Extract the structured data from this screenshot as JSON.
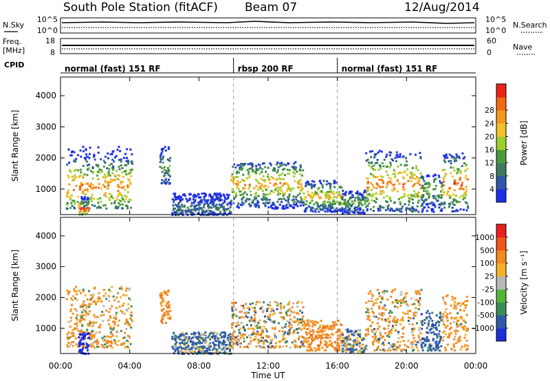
{
  "header": {
    "station": "South Pole Station (fitACF)",
    "beam": "Beam 07",
    "date": "12/Aug/2014"
  },
  "noise_panel": {
    "left_label": "N.Sky",
    "right_label": "N.Search",
    "left_ticks": [
      "10^5",
      "10^0"
    ],
    "right_ticks": [
      "10^5",
      "10^0"
    ]
  },
  "freq_panel": {
    "left_label_line1": "Freq.",
    "left_label_line2": "[MHz]",
    "right_label": "Nave",
    "left_ticks": [
      "18",
      "8"
    ],
    "right_ticks": [
      "60",
      "0"
    ]
  },
  "cpid": {
    "label": "CPID",
    "segments": [
      {
        "name": "normal (fast) 151 RF",
        "start_hour": 0,
        "end_hour": 10
      },
      {
        "name": "rbsp 200 RF",
        "start_hour": 10,
        "end_hour": 16
      },
      {
        "name": "normal (fast) 151 RF",
        "start_hour": 16,
        "end_hour": 24
      }
    ]
  },
  "colors": {
    "power_scale": [
      "#1e2fe6",
      "#2f57a8",
      "#3e7a5e",
      "#4b9a3c",
      "#9ccf2e",
      "#f2c12a",
      "#f29a1e",
      "#f06a14",
      "#e8241a"
    ],
    "velocity_scale": [
      "#e8201c",
      "#f0561a",
      "#f28a1e",
      "#f5b12a",
      "#b8b8b8",
      "#56b33a",
      "#3c8c5a",
      "#2f5aa6",
      "#1d2fd8"
    ]
  },
  "chart_data": [
    {
      "type": "heatmap",
      "title": "",
      "xlabel": "Time UT",
      "ylabel": "Slant Range [km]",
      "xlim": [
        0,
        24
      ],
      "ylim": [
        180,
        4600
      ],
      "x_ticks": [
        "00:00",
        "04:00",
        "08:00",
        "12:00",
        "16:00",
        "20:00",
        "00:00"
      ],
      "y_ticks": [
        "1000",
        "2000",
        "3000",
        "4000"
      ],
      "colorbar": {
        "label": "Power [dB]",
        "min": 0,
        "max": 32,
        "tick_labels": [
          "4",
          "8",
          "12",
          "16",
          "20",
          "24",
          "28"
        ]
      },
      "regions": [
        {
          "t": [
            0.3,
            4.1
          ],
          "r": [
            400,
            2400
          ],
          "center": 1100,
          "level": 24,
          "note": "daytime echo band 00-04 UT"
        },
        {
          "t": [
            1.0,
            1.6
          ],
          "r": [
            200,
            800
          ],
          "center": 400,
          "level": 28
        },
        {
          "t": [
            5.7,
            6.3
          ],
          "r": [
            1200,
            2400
          ],
          "center": 1700,
          "level": 12
        },
        {
          "t": [
            6.4,
            9.8
          ],
          "r": [
            200,
            900
          ],
          "center": 400,
          "level": 8
        },
        {
          "t": [
            9.8,
            14.0
          ],
          "r": [
            400,
            1900
          ],
          "center": 1200,
          "level": 22
        },
        {
          "t": [
            14.0,
            16.2
          ],
          "r": [
            300,
            1300
          ],
          "center": 800,
          "level": 20
        },
        {
          "t": [
            16.2,
            17.6
          ],
          "r": [
            250,
            1000
          ],
          "center": 600,
          "level": 12
        },
        {
          "t": [
            17.6,
            20.8
          ],
          "r": [
            300,
            2300
          ],
          "center": 1200,
          "level": 24
        },
        {
          "t": [
            20.8,
            22.0
          ],
          "r": [
            300,
            1500
          ],
          "center": 1000,
          "level": 14
        },
        {
          "t": [
            22.0,
            23.5
          ],
          "r": [
            300,
            2200
          ],
          "center": 1200,
          "level": 26
        }
      ]
    },
    {
      "type": "heatmap",
      "title": "",
      "xlabel": "Time UT",
      "ylabel": "Slant Range [km]",
      "xlim": [
        0,
        24
      ],
      "ylim": [
        180,
        4600
      ],
      "x_ticks": [
        "00:00",
        "04:00",
        "08:00",
        "12:00",
        "16:00",
        "20:00",
        "00:00"
      ],
      "y_ticks": [
        "1000",
        "2000",
        "3000",
        "4000"
      ],
      "colorbar": {
        "label": "Velocity [m s⁻¹]",
        "tick_labels": [
          "1000",
          "500",
          "100",
          "25",
          "-25",
          "-100",
          "-500",
          "-1000"
        ]
      },
      "regions": [
        {
          "t": [
            0.3,
            4.1
          ],
          "r": [
            400,
            2400
          ],
          "center": 1200,
          "level": -150
        },
        {
          "t": [
            1.0,
            1.6
          ],
          "r": [
            200,
            900
          ],
          "center": 500,
          "level": 800
        },
        {
          "t": [
            5.7,
            6.3
          ],
          "r": [
            1200,
            2300
          ],
          "center": 1700,
          "level": -300
        },
        {
          "t": [
            6.4,
            9.8
          ],
          "r": [
            200,
            900
          ],
          "center": 400,
          "level": 150
        },
        {
          "t": [
            9.8,
            14.0
          ],
          "r": [
            400,
            1900
          ],
          "center": 1200,
          "level": -80
        },
        {
          "t": [
            14.0,
            16.2
          ],
          "r": [
            300,
            1300
          ],
          "center": 800,
          "level": -300
        },
        {
          "t": [
            16.2,
            17.6
          ],
          "r": [
            250,
            1000
          ],
          "center": 600,
          "level": 60
        },
        {
          "t": [
            17.6,
            20.8
          ],
          "r": [
            300,
            2300
          ],
          "center": 1200,
          "level": -120
        },
        {
          "t": [
            20.8,
            22.0
          ],
          "r": [
            300,
            1600
          ],
          "center": 900,
          "level": 300
        },
        {
          "t": [
            22.0,
            23.5
          ],
          "r": [
            300,
            2100
          ],
          "center": 1200,
          "level": -200
        }
      ]
    }
  ]
}
